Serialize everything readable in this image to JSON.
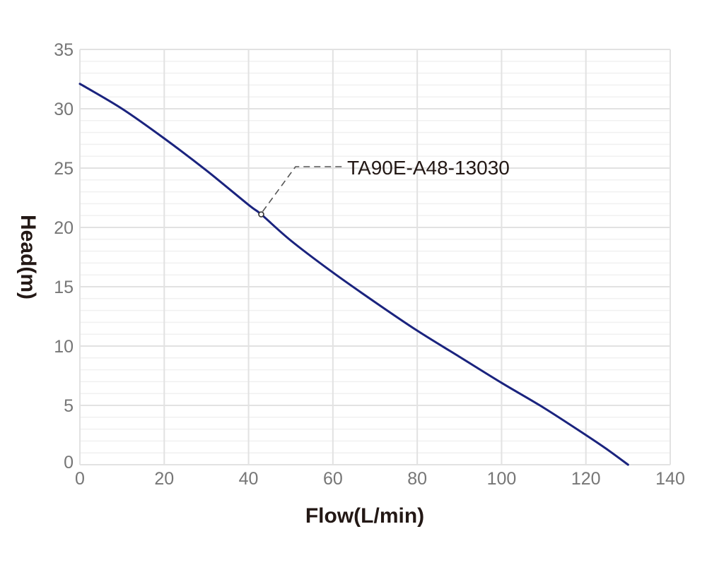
{
  "chart_data": {
    "type": "line",
    "title": "",
    "xlabel": "Flow(L/min)",
    "ylabel": "Head(m)",
    "xlim": [
      0,
      140
    ],
    "ylim": [
      0,
      35
    ],
    "x_ticks": [
      0,
      20,
      40,
      60,
      80,
      100,
      120,
      140
    ],
    "y_ticks": [
      0,
      5,
      10,
      15,
      20,
      25,
      30,
      35
    ],
    "grid": {
      "major": true,
      "minor_y_step": 1
    },
    "legend": "none",
    "series": [
      {
        "name": "TA90E-A48-13030",
        "color": "#1a237e",
        "x": [
          0,
          10,
          20,
          30,
          40,
          43,
          50,
          60,
          70,
          80,
          90,
          100,
          110,
          120,
          125,
          130
        ],
        "y": [
          32.1,
          30.0,
          27.5,
          24.8,
          21.9,
          21.1,
          18.9,
          16.2,
          13.7,
          11.3,
          9.1,
          6.9,
          4.8,
          2.5,
          1.3,
          0
        ]
      }
    ],
    "annotations": [
      {
        "text": "TA90E-A48-13030",
        "point": {
          "x": 43,
          "y": 21.1
        },
        "style": "dashed leader line with open circle marker"
      }
    ]
  },
  "labels": {
    "xlabel": "Flow(L/min)",
    "ylabel": "Head(m)",
    "annotation": "TA90E-A48-13030"
  }
}
